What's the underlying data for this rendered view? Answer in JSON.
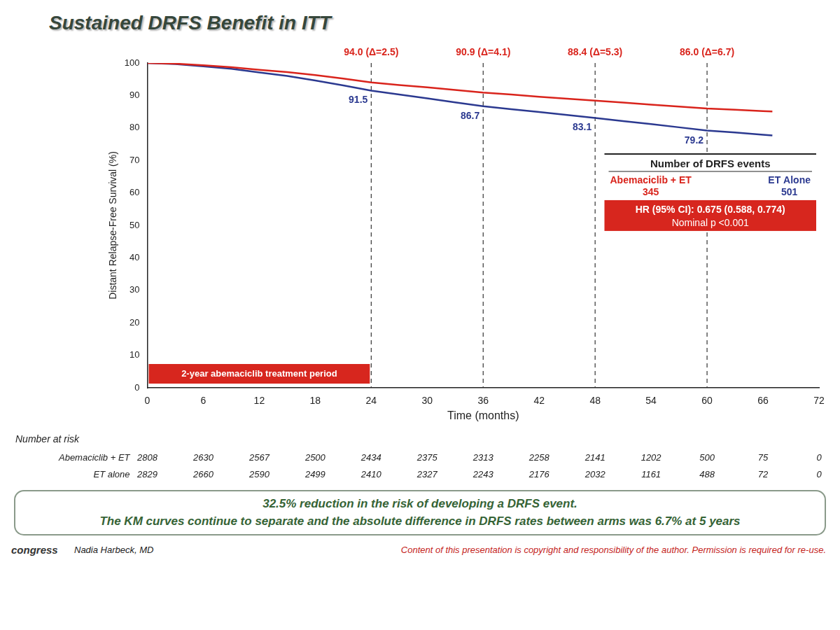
{
  "chart_data": {
    "type": "line",
    "title": "Sustained DRFS Benefit in ITT",
    "x_label": "Time (months)",
    "y_label": "Distant Relapse-Free Survival (%)",
    "xlim": [
      0,
      72
    ],
    "xticks": [
      0,
      6,
      12,
      18,
      24,
      30,
      36,
      42,
      48,
      54,
      60,
      66,
      72
    ],
    "ylim": [
      0,
      100
    ],
    "yticks": [
      0,
      10,
      20,
      30,
      40,
      50,
      60,
      70,
      80,
      90,
      100
    ],
    "grid": false,
    "x": [
      0,
      3,
      6,
      9,
      12,
      15,
      18,
      21,
      24,
      27,
      30,
      33,
      36,
      39,
      42,
      45,
      48,
      51,
      54,
      57,
      60,
      63,
      66,
      67
    ],
    "series": [
      {
        "name": "Abemaciclib + ET",
        "color": "#d9241c",
        "values": [
          100,
          99.8,
          99.3,
          98.7,
          97.9,
          97.2,
          96.3,
          95.2,
          94.0,
          93.2,
          92.5,
          91.7,
          90.9,
          90.3,
          89.6,
          89.0,
          88.4,
          87.8,
          87.2,
          86.6,
          86.0,
          85.6,
          85.2,
          85.1
        ],
        "landmark_values": [
          94.0,
          90.9,
          88.4,
          86.0
        ],
        "landmark_labels": [
          "94.0 (Δ=2.5)",
          "90.9 (Δ=4.1)",
          "88.4 (Δ=5.3)",
          "86.0 (Δ=6.7)"
        ],
        "number_at_risk": [
          2808,
          2630,
          2567,
          2500,
          2434,
          2375,
          2313,
          2258,
          2141,
          1202,
          500,
          75,
          0
        ]
      },
      {
        "name": "ET alone",
        "color": "#2b3990",
        "values": [
          100,
          99.7,
          99.0,
          98.2,
          97.1,
          96.0,
          94.6,
          93.1,
          91.5,
          90.3,
          89.1,
          87.9,
          86.7,
          85.8,
          84.9,
          84.0,
          83.1,
          82.1,
          81.2,
          80.2,
          79.2,
          78.6,
          77.9,
          77.7
        ],
        "landmark_values": [
          91.5,
          86.7,
          83.1,
          79.2
        ],
        "landmark_labels": [
          "91.5",
          "86.7",
          "83.1",
          "79.2"
        ],
        "number_at_risk": [
          2829,
          2660,
          2590,
          2499,
          2410,
          2327,
          2243,
          2176,
          2032,
          1161,
          488,
          72,
          0
        ]
      }
    ],
    "landmark_x": [
      24,
      36,
      48,
      60
    ],
    "treatment_period": {
      "label": "2-year abemaciclib treatment period",
      "x": [
        0,
        24
      ]
    },
    "risk_table_title": "Number at risk",
    "risk_x": [
      0,
      6,
      12,
      18,
      24,
      30,
      36,
      42,
      48,
      54,
      60,
      66,
      72
    ],
    "events_box": {
      "title": "Number of DRFS events",
      "groups": [
        {
          "name": "Abemaciclib + ET",
          "value": 345,
          "color": "#d9241c"
        },
        {
          "name": "ET Alone",
          "value": 501,
          "color": "#2b3990"
        }
      ],
      "hr_label": "HR (95% CI): 0.675 (0.588, 0.774)",
      "p_label": "Nominal p <0.001"
    },
    "footnotes": [
      "32.5% reduction in the risk of developing a DRFS event.",
      "The KM curves continue to separate and the absolute difference in DRFS rates between arms was 6.7% at 5 years"
    ],
    "logo_text": "congress",
    "author": "Nadia Harbeck, MD",
    "copyright": "Content of this presentation is copyright and responsibility of the author. Permission is required for re-use."
  }
}
